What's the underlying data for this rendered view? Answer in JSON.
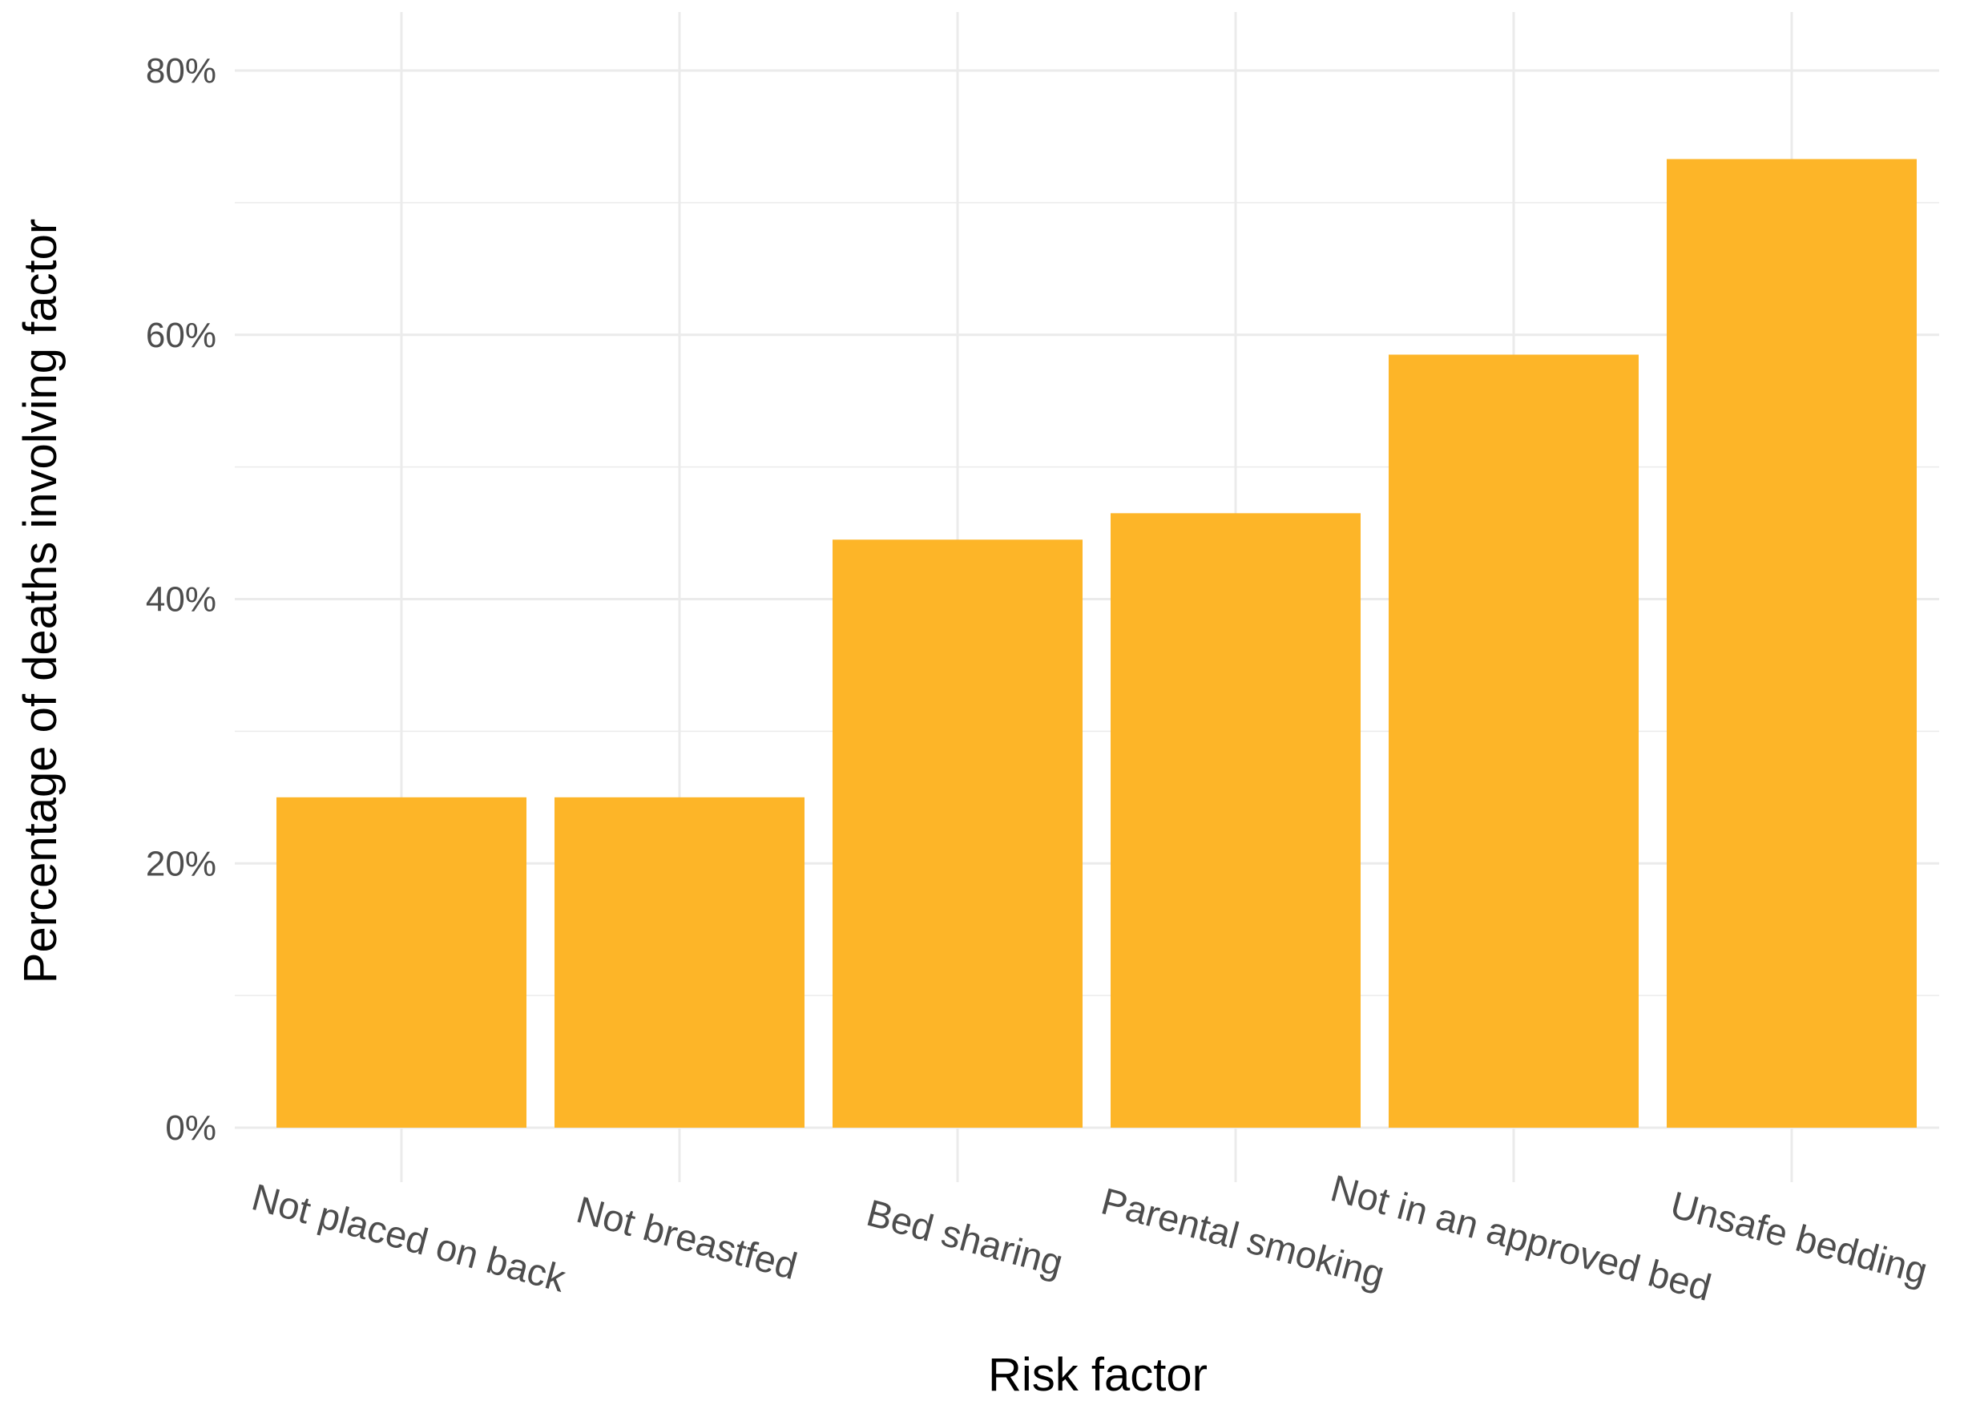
{
  "chart_data": {
    "type": "bar",
    "categories": [
      "Not placed on back",
      "Not breastfed",
      "Bed sharing",
      "Parental smoking",
      "Not in an approved bed",
      "Unsafe bedding"
    ],
    "values": [
      25,
      25,
      44.5,
      46.5,
      58.5,
      73.3
    ],
    "xlabel": "Risk factor",
    "ylabel": "Percentage of deaths involving factor",
    "ylim": [
      0,
      80
    ],
    "y_ticks": [
      0,
      20,
      40,
      60,
      80
    ],
    "y_tick_labels": [
      "0%",
      "20%",
      "40%",
      "60%",
      "80%"
    ],
    "grid": true,
    "bar_color": "#FDB528",
    "grid_color": "#EBEBEB"
  }
}
